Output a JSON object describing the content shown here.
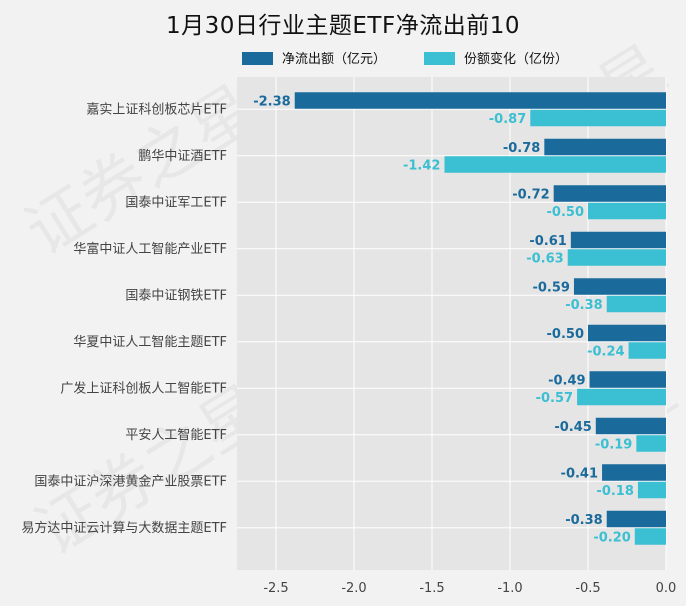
{
  "chart_data": {
    "type": "bar",
    "orientation": "horizontal",
    "title": "1月30日行业主题ETF净流出前10",
    "categories": [
      "嘉实上证科创板芯片ETF",
      "鹏华中证酒ETF",
      "国泰中证军工ETF",
      "华富中证人工智能产业ETF",
      "国泰中证钢铁ETF",
      "华夏中证人工智能主题ETF",
      "广发上证科创板人工智能ETF",
      "平安人工智能ETF",
      "国泰中证沪深港黄金产业股票ETF",
      "易方达中证云计算与大数据主题ETF"
    ],
    "series": [
      {
        "name": "净流出额（亿元）",
        "color": "#1a6b9c",
        "values": [
          -2.38,
          -0.78,
          -0.72,
          -0.61,
          -0.59,
          -0.5,
          -0.49,
          -0.45,
          -0.41,
          -0.38
        ]
      },
      {
        "name": "份额变化（亿份）",
        "color": "#3bbfd2",
        "values": [
          -0.87,
          -1.42,
          -0.5,
          -0.63,
          -0.38,
          -0.24,
          -0.57,
          -0.19,
          -0.18,
          -0.2
        ]
      }
    ],
    "value_labels": [
      [
        "-2.38",
        "-0.78",
        "-0.72",
        "-0.61",
        "-0.59",
        "-0.50",
        "-0.49",
        "-0.45",
        "-0.41",
        "-0.38"
      ],
      [
        "-0.87",
        "-1.42",
        "-0.50",
        "-0.63",
        "-0.38",
        "-0.24",
        "-0.57",
        "-0.19",
        "-0.18",
        "-0.20"
      ]
    ],
    "xlim": [
      -2.75,
      0.0
    ],
    "xticks": [
      -2.5,
      -2.0,
      -1.5,
      -1.0,
      -0.5,
      0.0
    ],
    "xtick_labels": [
      "-2.5",
      "-2.0",
      "-1.5",
      "-1.0",
      "-0.5",
      "0.0"
    ],
    "legend_position": "top",
    "grid": true,
    "xlabel": "",
    "ylabel": ""
  },
  "watermark_text": "证券之星",
  "colors": {
    "plot_bg": "#e5e5e5",
    "page_bg": "#f2f2f2",
    "grid": "#ffffff",
    "text": "#444444"
  }
}
